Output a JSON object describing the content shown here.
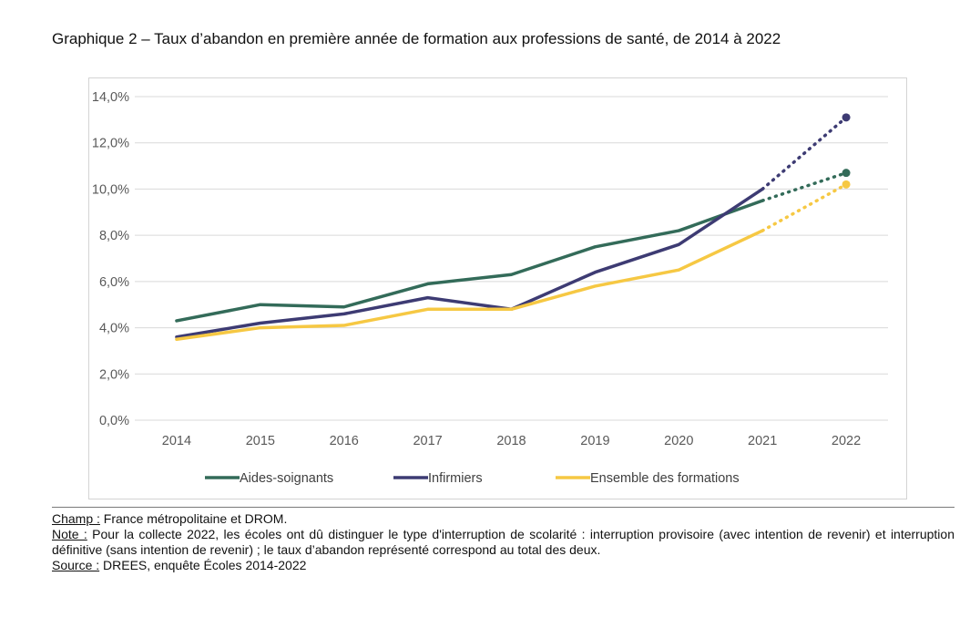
{
  "title": "Graphique 2 – Taux d’abandon en première année de formation aux professions de santé, de 2014 à 2022",
  "colors": {
    "aides_soignants": "#336b59",
    "infirmiers": "#3d3b73",
    "ensemble": "#f6c843",
    "grid": "#d9d9d9",
    "axis_text": "#595959"
  },
  "chart_data": {
    "type": "line",
    "title": "",
    "xlabel": "",
    "ylabel": "",
    "x": [
      "2014",
      "2015",
      "2016",
      "2017",
      "2018",
      "2019",
      "2020",
      "2021",
      "2022"
    ],
    "ylim": [
      0,
      14
    ],
    "yticks": [
      0,
      2,
      4,
      6,
      8,
      10,
      12,
      14
    ],
    "ytick_labels": [
      "0,0%",
      "2,0%",
      "4,0%",
      "6,0%",
      "8,0%",
      "10,0%",
      "12,0%",
      "14,0%"
    ],
    "grid": true,
    "legend_position": "bottom",
    "series": [
      {
        "name": "Aides-soignants",
        "color": "#336b59",
        "values": [
          4.3,
          5.0,
          4.9,
          5.9,
          6.3,
          7.5,
          8.2,
          9.5,
          10.7
        ],
        "dotted_from_index": 7
      },
      {
        "name": "Infirmiers",
        "color": "#3d3b73",
        "values": [
          3.6,
          4.2,
          4.6,
          5.3,
          4.8,
          6.4,
          7.6,
          10.0,
          13.1
        ],
        "dotted_from_index": 7
      },
      {
        "name": "Ensemble des formations",
        "color": "#f6c843",
        "values": [
          3.5,
          4.0,
          4.1,
          4.8,
          4.8,
          5.8,
          6.5,
          8.2,
          10.2
        ],
        "dotted_from_index": 7
      }
    ]
  },
  "notes": {
    "champ_label": "Champ :",
    "champ_text": " France métropolitaine et DROM.",
    "note_label": "Note :",
    "note_text": " Pour la collecte 2022, les écoles ont dû distinguer le type d'interruption de scolarité : interruption provisoire (avec intention de revenir) et interruption définitive (sans intention de revenir) ; le taux d’abandon représenté correspond au total des deux.",
    "source_label": "Source :",
    "source_text": " DREES, enquête Écoles 2014-2022"
  }
}
